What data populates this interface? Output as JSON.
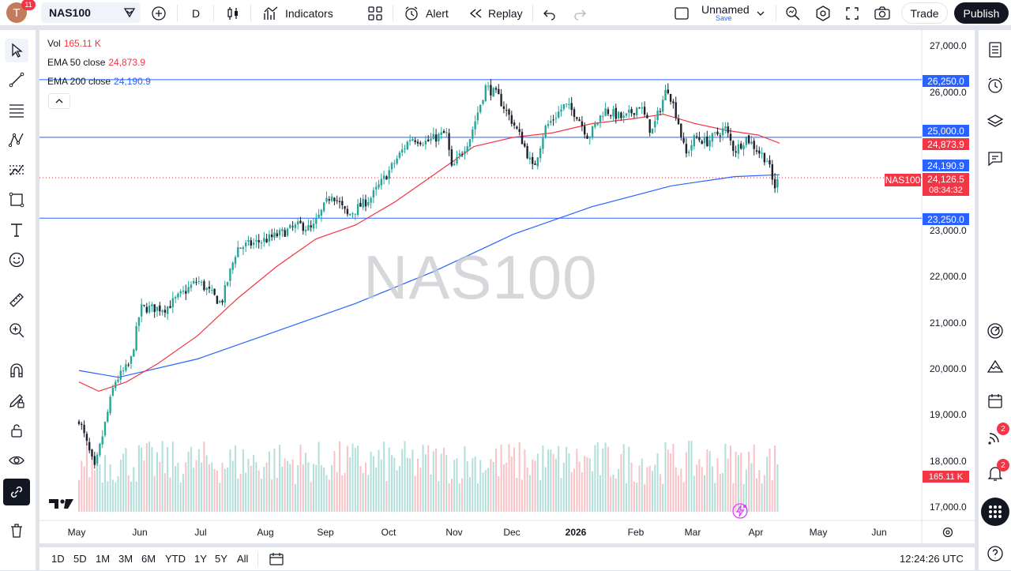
{
  "topbar": {
    "avatar_letter": "T",
    "avatar_badge": "11",
    "symbol": "NAS100",
    "timeframe": "D",
    "indicators_label": "Indicators",
    "alert_label": "Alert",
    "replay_label": "Replay",
    "layout_name": "Unnamed",
    "layout_save": "Save",
    "trade_label": "Trade",
    "publish_label": "Publish"
  },
  "legend": {
    "vol_label": "Vol",
    "vol_value": "165.11 K",
    "ema50_label": "EMA 50 close",
    "ema50_value": "24,873.9",
    "ema200_label": "EMA 200 close",
    "ema200_value": "24,190.9"
  },
  "watermark": "NAS100",
  "price_axis": [
    "27,000.0",
    "26,000.0",
    "23,000.0",
    "22,000.0",
    "21,000.0",
    "20,000.0",
    "19,000.0",
    "18,000.0",
    "17,000.0"
  ],
  "price_tags": {
    "line_26250": "26,250.0",
    "line_25000": "25,000.0",
    "ema50": "24,873.9",
    "ema200": "24,190.9",
    "last_price": "24,126.5",
    "countdown": "08:34:32",
    "symbol_tag": "NAS100",
    "line_23250": "23,250.0",
    "volume": "165.11 K"
  },
  "time_axis": [
    "May",
    "Jun",
    "Jul",
    "Aug",
    "Sep",
    "Oct",
    "Nov",
    "Dec",
    "2026",
    "Feb",
    "Mar",
    "Apr",
    "May",
    "Jun"
  ],
  "bottombar": {
    "ranges": [
      "1D",
      "5D",
      "1M",
      "3M",
      "6M",
      "YTD",
      "1Y",
      "5Y",
      "All"
    ],
    "clock": "12:24:26 UTC"
  },
  "right_badges": {
    "ideas": "2",
    "alerts": "2"
  },
  "colors": {
    "up": "#26a69a",
    "down": "#1e222d",
    "ema50": "#f23645",
    "ema200": "#2962ff",
    "hline": "#2962ff",
    "last": "#f23645"
  },
  "chart_data": {
    "type": "candlestick",
    "symbol": "NAS100",
    "interval": "D",
    "ylim": [
      16800,
      27300
    ],
    "horizontal_lines": [
      26250,
      25000,
      23250
    ],
    "last_price": 24126.5,
    "ema50_last": 24873.9,
    "ema200_last": 24190.9,
    "anchors": [
      {
        "x": 50,
        "y": 18900
      },
      {
        "x": 70,
        "y": 17800
      },
      {
        "x": 95,
        "y": 19700
      },
      {
        "x": 115,
        "y": 20100
      },
      {
        "x": 128,
        "y": 21300
      },
      {
        "x": 160,
        "y": 21300
      },
      {
        "x": 200,
        "y": 21900
      },
      {
        "x": 230,
        "y": 21400
      },
      {
        "x": 250,
        "y": 22600
      },
      {
        "x": 290,
        "y": 22800
      },
      {
        "x": 330,
        "y": 23100
      },
      {
        "x": 345,
        "y": 23000
      },
      {
        "x": 370,
        "y": 23800
      },
      {
        "x": 390,
        "y": 23300
      },
      {
        "x": 420,
        "y": 23700
      },
      {
        "x": 440,
        "y": 24200
      },
      {
        "x": 470,
        "y": 25000
      },
      {
        "x": 490,
        "y": 24900
      },
      {
        "x": 515,
        "y": 25100
      },
      {
        "x": 522,
        "y": 24300
      },
      {
        "x": 545,
        "y": 25000
      },
      {
        "x": 565,
        "y": 26100
      },
      {
        "x": 580,
        "y": 25900
      },
      {
        "x": 600,
        "y": 25300
      },
      {
        "x": 612,
        "y": 24900
      },
      {
        "x": 625,
        "y": 24300
      },
      {
        "x": 640,
        "y": 25200
      },
      {
        "x": 665,
        "y": 25700
      },
      {
        "x": 680,
        "y": 25500
      },
      {
        "x": 695,
        "y": 25000
      },
      {
        "x": 715,
        "y": 25600
      },
      {
        "x": 740,
        "y": 25400
      },
      {
        "x": 760,
        "y": 25700
      },
      {
        "x": 775,
        "y": 25100
      },
      {
        "x": 795,
        "y": 26100
      },
      {
        "x": 808,
        "y": 25400
      },
      {
        "x": 818,
        "y": 24600
      },
      {
        "x": 830,
        "y": 25000
      },
      {
        "x": 845,
        "y": 24900
      },
      {
        "x": 868,
        "y": 25200
      },
      {
        "x": 880,
        "y": 24700
      },
      {
        "x": 895,
        "y": 25000
      },
      {
        "x": 910,
        "y": 24700
      },
      {
        "x": 922,
        "y": 24500
      },
      {
        "x": 930,
        "y": 23900
      },
      {
        "x": 937,
        "y": 24126
      }
    ],
    "ema50": [
      {
        "x": 50,
        "y": 19700
      },
      {
        "x": 75,
        "y": 19500
      },
      {
        "x": 110,
        "y": 19700
      },
      {
        "x": 150,
        "y": 20100
      },
      {
        "x": 200,
        "y": 20700
      },
      {
        "x": 250,
        "y": 21500
      },
      {
        "x": 300,
        "y": 22200
      },
      {
        "x": 350,
        "y": 22800
      },
      {
        "x": 400,
        "y": 23100
      },
      {
        "x": 450,
        "y": 23600
      },
      {
        "x": 500,
        "y": 24200
      },
      {
        "x": 550,
        "y": 24800
      },
      {
        "x": 600,
        "y": 25000
      },
      {
        "x": 650,
        "y": 25100
      },
      {
        "x": 700,
        "y": 25300
      },
      {
        "x": 750,
        "y": 25400
      },
      {
        "x": 790,
        "y": 25500
      },
      {
        "x": 830,
        "y": 25300
      },
      {
        "x": 870,
        "y": 25150
      },
      {
        "x": 910,
        "y": 25050
      },
      {
        "x": 937,
        "y": 24874
      }
    ],
    "ema200": [
      {
        "x": 50,
        "y": 19950
      },
      {
        "x": 100,
        "y": 19800
      },
      {
        "x": 200,
        "y": 20200
      },
      {
        "x": 300,
        "y": 20800
      },
      {
        "x": 400,
        "y": 21400
      },
      {
        "x": 500,
        "y": 22100
      },
      {
        "x": 600,
        "y": 22900
      },
      {
        "x": 700,
        "y": 23500
      },
      {
        "x": 800,
        "y": 23950
      },
      {
        "x": 880,
        "y": 24150
      },
      {
        "x": 937,
        "y": 24191
      }
    ]
  }
}
